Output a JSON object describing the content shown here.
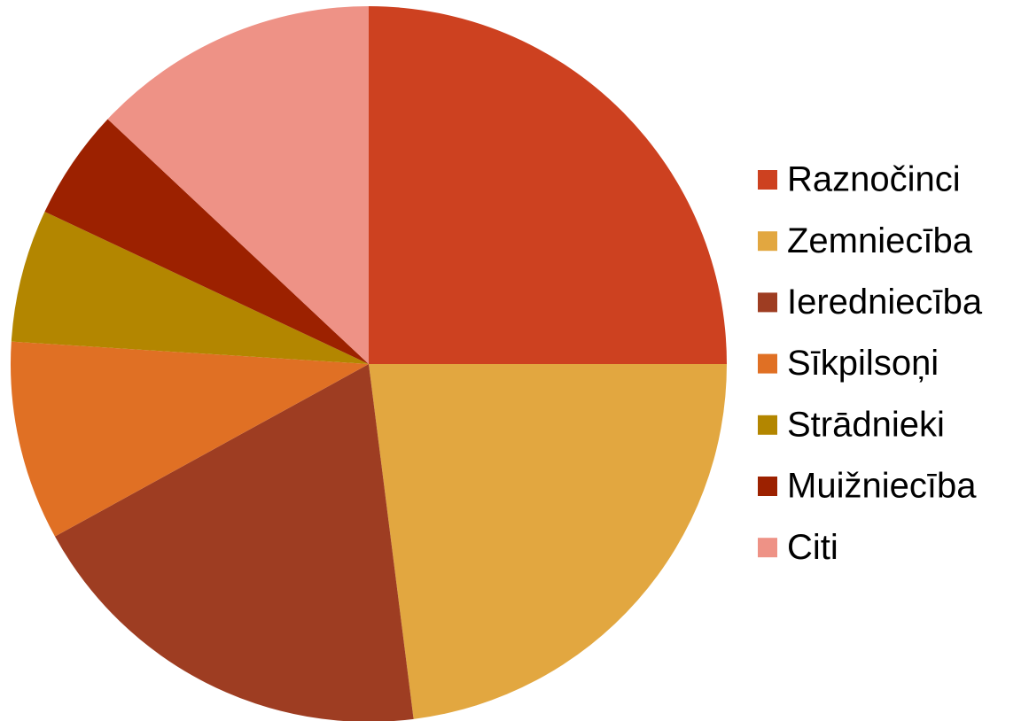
{
  "chart_data": {
    "type": "pie",
    "categories": [
      "Raznočinci",
      "Zemniecība",
      "Ieredniecība",
      "Sīkpilsoņi",
      "Strādnieki",
      "Muižniecība",
      "Citi"
    ],
    "values": [
      25,
      23,
      19,
      9,
      6,
      5,
      13
    ],
    "colors": [
      "#cd4120",
      "#e2a740",
      "#9e3d22",
      "#e07024",
      "#b38600",
      "#9c2100",
      "#ee9286"
    ],
    "legend": "right"
  }
}
